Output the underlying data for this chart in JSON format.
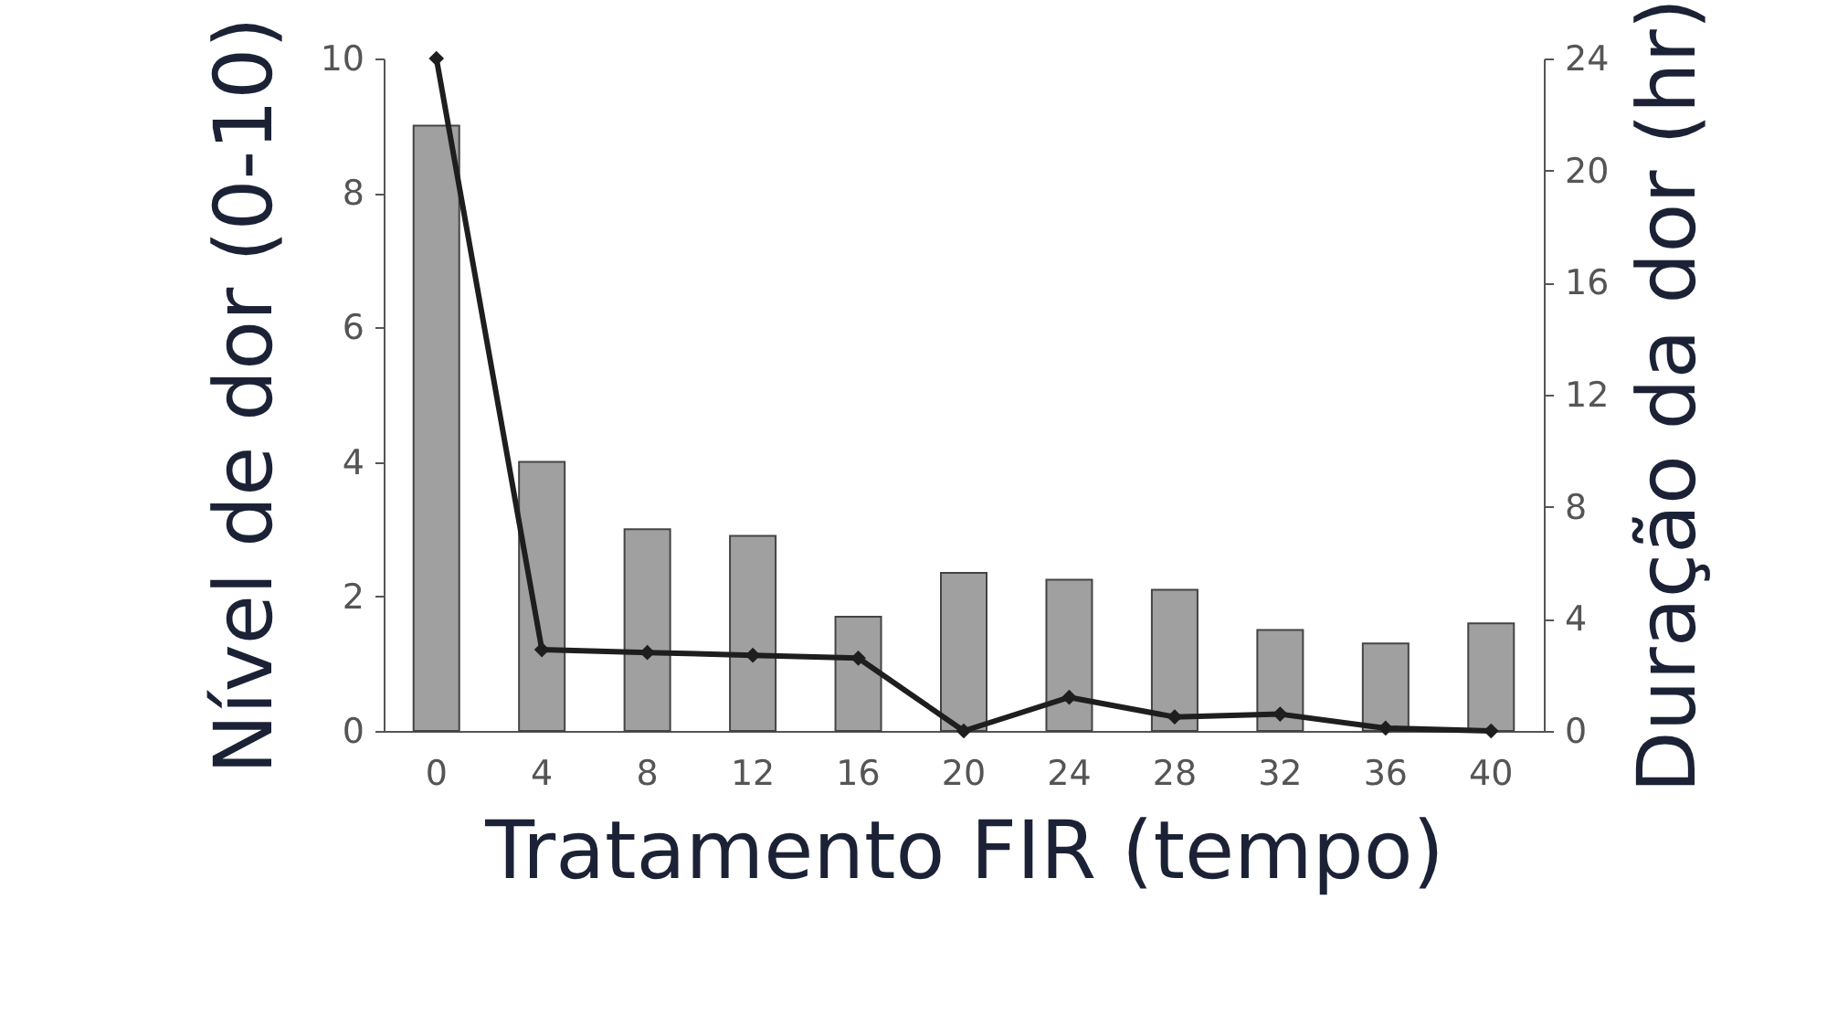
{
  "chart_data": {
    "type": "bar",
    "xlabel": "Tratamento FIR (tempo)",
    "ylabel": "Nível de dor (0-10)",
    "y2label": "Duração da dor (hr)",
    "categories": [
      "0",
      "4",
      "8",
      "12",
      "16",
      "20",
      "24",
      "28",
      "32",
      "36",
      "40"
    ],
    "series": [
      {
        "color": "#a0a0a0",
        "values": [
          9.0,
          4.0,
          3.0,
          2.9,
          1.7,
          2.35,
          2.25,
          2.1,
          1.5,
          1.3,
          1.6
        ]
      },
      {
        "type": "line",
        "axis": "y2",
        "color": "#1e1e1e",
        "marker": "diamond",
        "values": [
          24,
          2.9,
          2.8,
          2.7,
          2.6,
          0,
          1.2,
          0.5,
          0.6,
          0.1,
          0
        ]
      }
    ],
    "ylim": [
      0,
      10
    ],
    "yticks": [
      0,
      2,
      4,
      6,
      8,
      10
    ],
    "y2lim": [
      0,
      24
    ],
    "y2ticks": [
      0,
      4,
      8,
      12,
      16,
      20,
      24
    ],
    "grid": false
  }
}
